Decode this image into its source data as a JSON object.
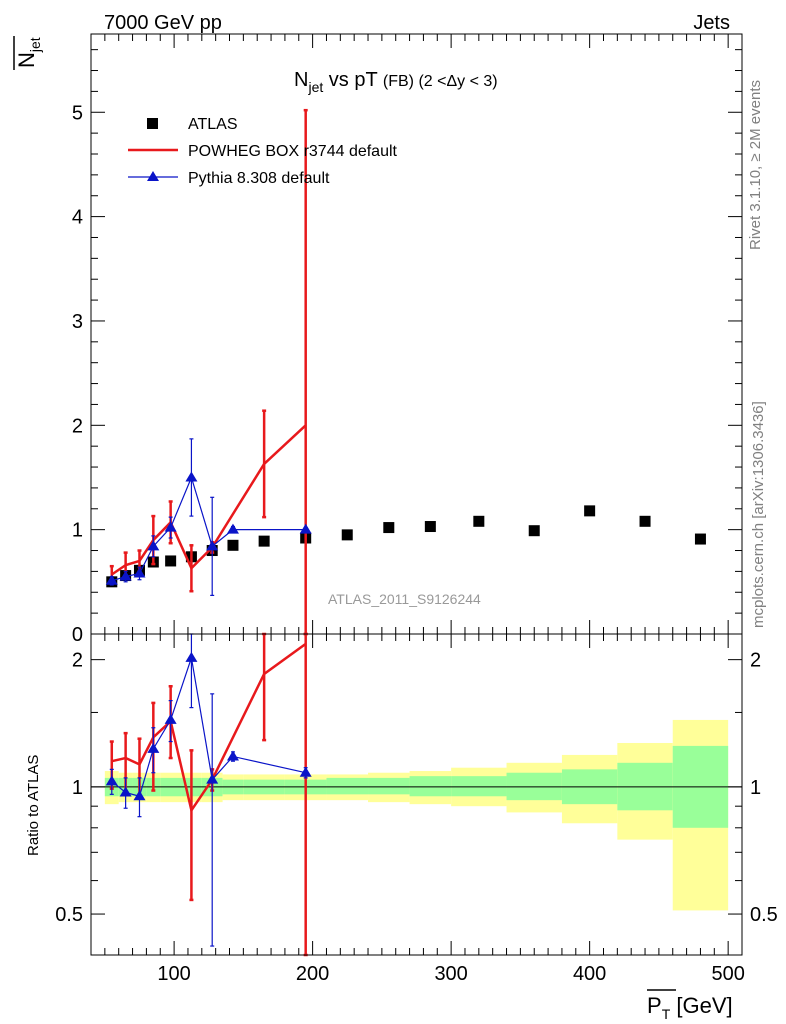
{
  "header": {
    "left": "7000 GeV pp",
    "right": "Jets"
  },
  "side_text": {
    "rivet": "Rivet 3.1.10, ≥ 2M events",
    "mcplots": "mcplots.cern.ch [arXiv:1306.3436]"
  },
  "watermark": "ATLAS_2011_S9126244",
  "colors": {
    "atlas": "#000000",
    "powheg": "#e8191c",
    "pythia": "#0a14c8",
    "band_inner": "#99ff99",
    "band_outer": "#ffff99"
  },
  "chart_data": [
    {
      "type": "scatter",
      "panel": "main",
      "title": "N_jet vs pT (FB) (2 < Δy < 3)",
      "ylabel": "N_jet (overlined)",
      "xlabel": "",
      "xlim": [
        40,
        510
      ],
      "ylim": [
        0,
        5.75
      ],
      "yticks": [
        0,
        1,
        2,
        3,
        4,
        5
      ],
      "legend_position": "top-left",
      "series": [
        {
          "name": "ATLAS",
          "style": "markers-square",
          "x": [
            55,
            65,
            75,
            85,
            97.5,
            112.5,
            127.5,
            142.5,
            165,
            195,
            225,
            255,
            285,
            320,
            360,
            400,
            440,
            480
          ],
          "y": [
            0.5,
            0.56,
            0.61,
            0.69,
            0.7,
            0.74,
            0.8,
            0.85,
            0.89,
            0.92,
            0.95,
            1.02,
            1.03,
            1.08,
            0.99,
            1.18,
            1.08,
            0.91
          ]
        },
        {
          "name": "POWHEG BOX r3744 default",
          "style": "line",
          "x": [
            55,
            65,
            75,
            85,
            97.5,
            112.5,
            127.5,
            165,
            195
          ],
          "y": [
            0.57,
            0.66,
            0.7,
            0.9,
            1.07,
            0.63,
            0.83,
            1.63,
            2.0
          ],
          "err": [
            0.08,
            0.12,
            0.1,
            0.23,
            0.2,
            0.22,
            0.05,
            0.51,
            3.02
          ]
        },
        {
          "name": "Pythia 8.308 default",
          "style": "line-triangle",
          "x": [
            55,
            65,
            75,
            85,
            97.5,
            112.5,
            127.5,
            142.5,
            195
          ],
          "y": [
            0.51,
            0.55,
            0.58,
            0.84,
            1.02,
            1.5,
            0.84,
            1.0,
            1.0
          ],
          "err": [
            0.04,
            0.05,
            0.06,
            0.1,
            0.1,
            0.37,
            0.47,
            0.03,
            0.02
          ]
        }
      ]
    },
    {
      "type": "scatter",
      "panel": "ratio",
      "ylabel": "Ratio to ATLAS",
      "xlabel": "P_T [GeV]",
      "xlim": [
        40,
        510
      ],
      "ylim": [
        0.4,
        2.3
      ],
      "log_y": true,
      "yticks": [
        0.5,
        1,
        2
      ],
      "xticks": [
        100,
        200,
        300,
        400,
        500
      ],
      "bands": {
        "x_edges": [
          50,
          60,
          70,
          80,
          90,
          105,
          120,
          135,
          150,
          180,
          210,
          240,
          270,
          300,
          340,
          380,
          420,
          460,
          500
        ],
        "inner_low": [
          0.95,
          0.95,
          0.95,
          0.95,
          0.95,
          0.95,
          0.95,
          0.96,
          0.96,
          0.96,
          0.96,
          0.96,
          0.95,
          0.95,
          0.93,
          0.91,
          0.88,
          0.8
        ],
        "inner_high": [
          1.05,
          1.05,
          1.05,
          1.05,
          1.05,
          1.05,
          1.05,
          1.04,
          1.04,
          1.04,
          1.05,
          1.05,
          1.06,
          1.06,
          1.08,
          1.1,
          1.14,
          1.25
        ],
        "outer_low": [
          0.91,
          0.92,
          0.92,
          0.92,
          0.92,
          0.92,
          0.92,
          0.93,
          0.93,
          0.93,
          0.93,
          0.92,
          0.91,
          0.9,
          0.87,
          0.82,
          0.75,
          0.51
        ],
        "outer_high": [
          1.09,
          1.08,
          1.08,
          1.08,
          1.08,
          1.08,
          1.08,
          1.07,
          1.07,
          1.07,
          1.07,
          1.08,
          1.09,
          1.11,
          1.14,
          1.19,
          1.27,
          1.44
        ]
      },
      "series": [
        {
          "name": "POWHEG BOX r3744 default",
          "x": [
            55,
            65,
            75,
            85,
            97.5,
            112.5,
            127.5,
            165,
            195
          ],
          "y": [
            1.15,
            1.17,
            1.13,
            1.31,
            1.43,
            0.88,
            1.04,
            1.85,
            2.18
          ],
          "err_low": [
            0.16,
            0.21,
            0.17,
            0.33,
            0.26,
            0.34,
            0.06,
            0.56,
            2.0
          ],
          "err_high": [
            0.13,
            0.17,
            0.17,
            0.27,
            0.3,
            0.34,
            0.06,
            0.56,
            2.0
          ]
        },
        {
          "name": "Pythia 8.308 default",
          "x": [
            55,
            65,
            75,
            85,
            97.5,
            112.5,
            127.5,
            142.5,
            195
          ],
          "y": [
            1.03,
            0.97,
            0.95,
            1.23,
            1.44,
            2.02,
            1.04,
            1.18,
            1.08
          ],
          "err_low": [
            0.07,
            0.08,
            0.1,
            0.15,
            0.16,
            0.48,
            0.62,
            0.03,
            0.03
          ],
          "err_high": [
            0.07,
            0.08,
            0.1,
            0.15,
            0.16,
            0.48,
            0.62,
            0.03,
            0.03
          ]
        }
      ]
    }
  ]
}
